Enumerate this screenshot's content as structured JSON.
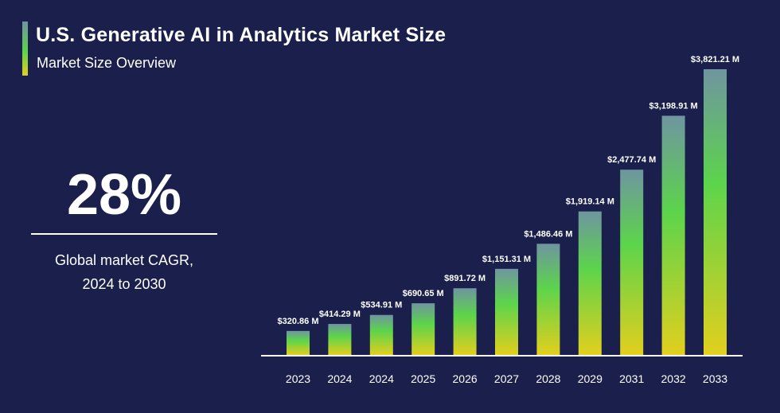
{
  "header": {
    "title": "U.S. Generative AI in Analytics Market Size",
    "subtitle": "Market Size Overview"
  },
  "kpi": {
    "value": "28%",
    "label_line1": "Global market CAGR,",
    "label_line2": "2024 to 2030"
  },
  "colors": {
    "background": "#1a1f4b",
    "bar_top": "#6f95a0",
    "bar_mid": "#5cd44b",
    "bar_bottom": "#e2cf1e",
    "text": "#ffffff"
  },
  "chart_data": {
    "type": "bar",
    "title": "U.S. Generative AI in Analytics Market Size",
    "subtitle": "Market Size Overview",
    "xlabel": "",
    "ylabel": "",
    "unit": "USD Million",
    "categories": [
      "2023",
      "2024",
      "2024",
      "2025",
      "2026",
      "2027",
      "2028",
      "2029",
      "2031",
      "2032",
      "2033"
    ],
    "values": [
      320.86,
      414.29,
      534.91,
      690.65,
      891.72,
      1151.31,
      1486.46,
      1919.14,
      2477.74,
      3198.91,
      3821.21
    ],
    "data_labels": [
      "$320.86 M",
      "$414.29 M",
      "$534.91 M",
      "$690.65 M",
      "$891.72 M",
      "$1,151.31 M",
      "$1,486.46 M",
      "$1,919.14 M",
      "$2,477.74 M",
      "$3,198.91 M",
      "$3,821.21 M"
    ],
    "ylim": [
      0,
      3821.21
    ],
    "grid": false,
    "legend": "none"
  }
}
